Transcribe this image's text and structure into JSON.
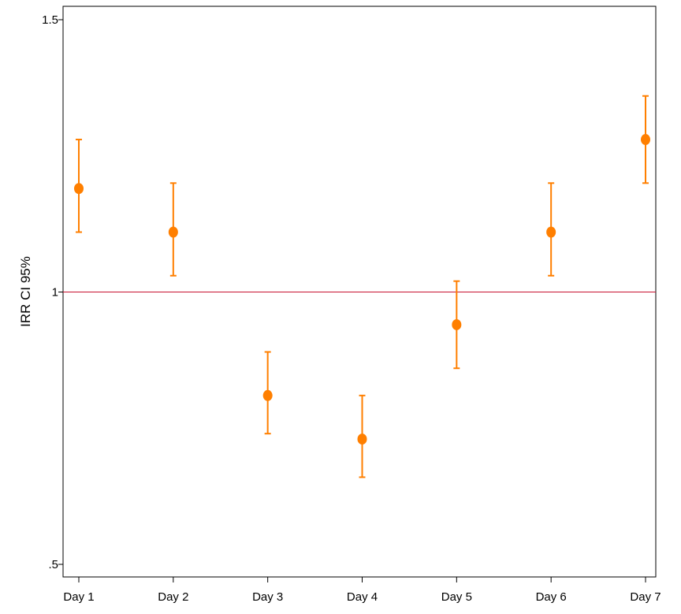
{
  "chart_data": {
    "type": "scatter",
    "title": "",
    "xlabel": "",
    "ylabel": "IRR CI 95%",
    "categories": [
      "Day 1",
      "Day 2",
      "Day 3",
      "Day 4",
      "Day 5",
      "Day 6",
      "Day 7"
    ],
    "series": [
      {
        "estimate": [
          1.19,
          1.11,
          0.81,
          0.73,
          0.94,
          1.11,
          1.28
        ],
        "ci_lower": [
          1.11,
          1.03,
          0.74,
          0.66,
          0.86,
          1.03,
          1.2
        ],
        "ci_upper": [
          1.28,
          1.2,
          0.89,
          0.81,
          1.02,
          1.2,
          1.36
        ]
      }
    ],
    "reference_line": 1,
    "ylim": [
      0.48,
      1.5
    ],
    "yticks": [
      0.5,
      1,
      1.5
    ],
    "ytick_labels": [
      ".5",
      "1",
      "1.5"
    ],
    "grid": false,
    "colors": {
      "points": "#ff7f00",
      "reference": "#c8102e",
      "axis": "#000000"
    }
  }
}
